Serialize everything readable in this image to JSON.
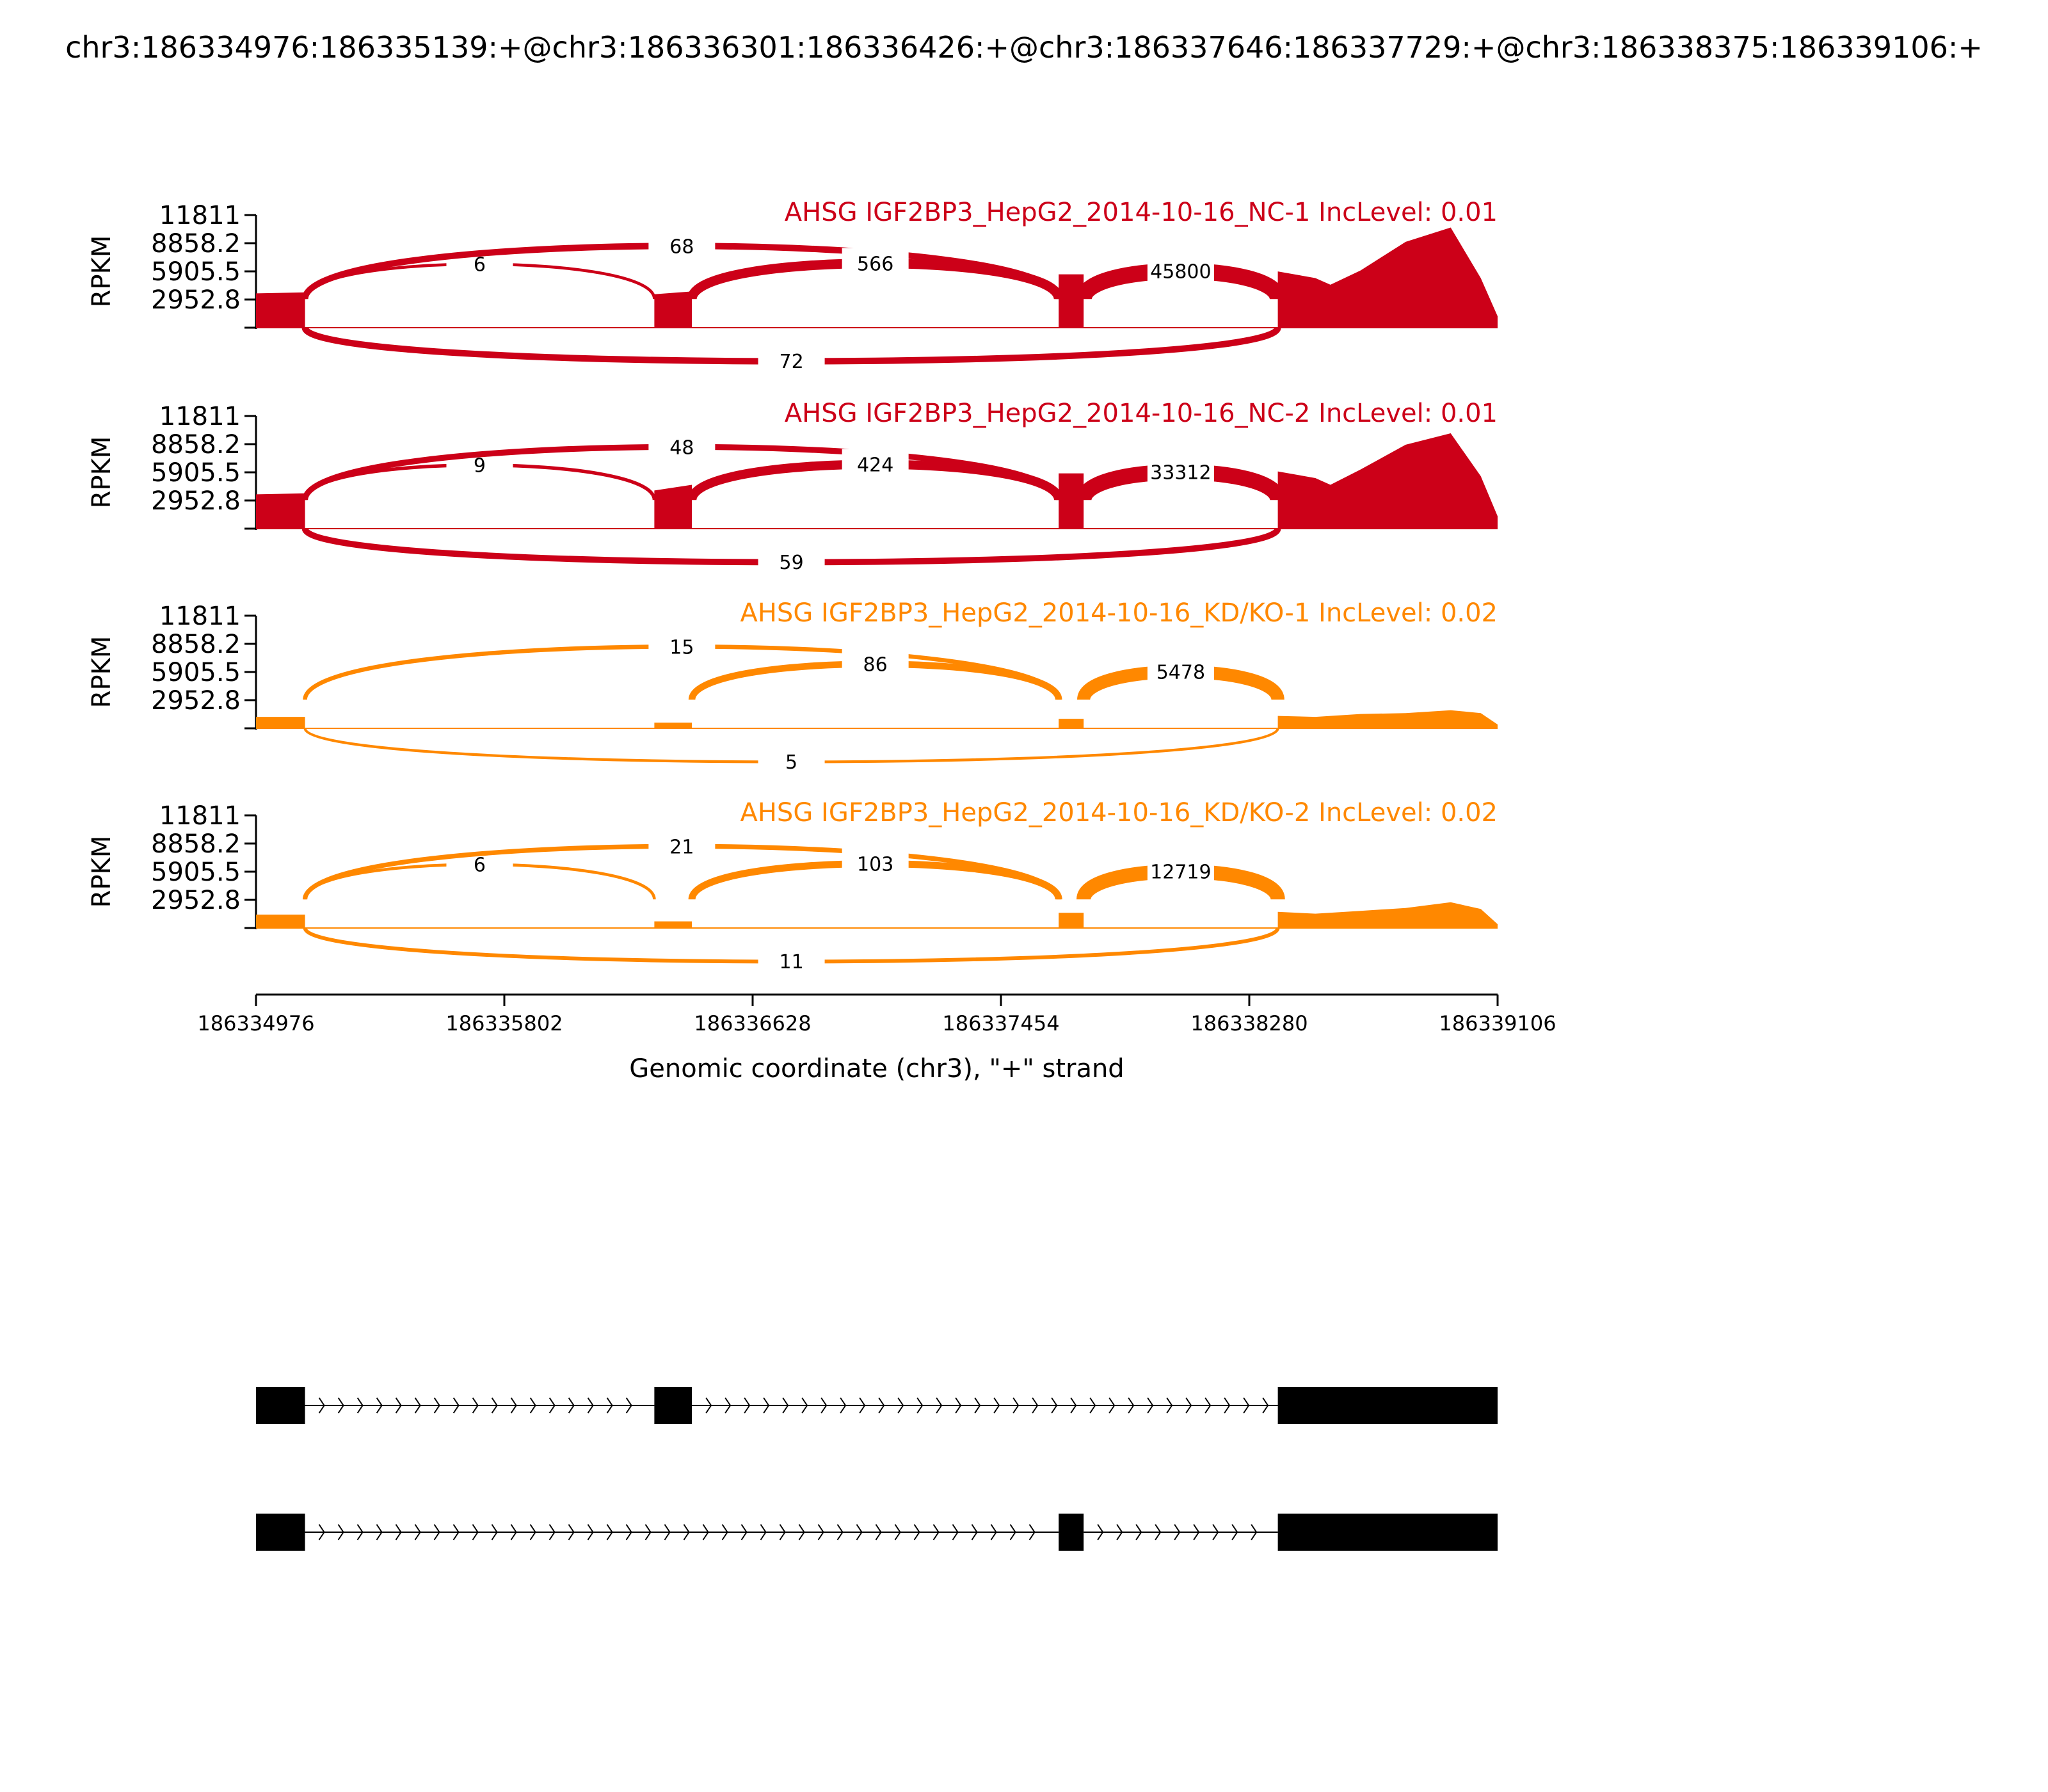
{
  "figure": {
    "title": "chr3:186334976:186335139:+@chr3:186336301:186336426:+@chr3:186337646:186337729:+@chr3:186338375:186339106:+",
    "xlabel": "Genomic coordinate (chr3), \"+\" strand",
    "colors": {
      "nc": "#cc0018",
      "kd": "#ff8800",
      "axis": "#000000",
      "bg": "#ffffff"
    }
  },
  "chart_data": {
    "type": "area",
    "xlim": [
      186334976,
      186339106
    ],
    "x_ticks": [
      "186334976",
      "186335802",
      "186336628",
      "186337454",
      "186338280",
      "186339106"
    ],
    "ylabel": "RPKM",
    "ylim": [
      0,
      11811
    ],
    "y_ticks": [
      "11811",
      "8858.2",
      "5905.5",
      "2952.8"
    ],
    "exons": [
      [
        186334976,
        186335139
      ],
      [
        186336301,
        186336426
      ],
      [
        186337646,
        186337729
      ],
      [
        186338375,
        186339106
      ]
    ],
    "panels": [
      {
        "label": "AHSG IGF2BP3_HepG2_2014-10-16_NC-1 IncLevel: 0.01",
        "group": "nc",
        "coverage": [
          {
            "x": [
              186334976,
              186335139
            ],
            "y": [
              3600,
              3700
            ]
          },
          {
            "x": [
              186336301,
              186336426
            ],
            "y": [
              3500,
              3800
            ]
          },
          {
            "x": [
              186337646,
              186337729
            ],
            "y": [
              5600,
              5600
            ]
          },
          {
            "x": [
              186338375,
              186338500,
              186338550,
              186338650,
              186338800,
              186338950,
              186339050,
              186339106
            ],
            "y": [
              5900,
              5200,
              4500,
              6000,
              9000,
              10500,
              5200,
              1200
            ]
          }
        ],
        "junctions": [
          {
            "from": 186335139,
            "to": 186336301,
            "count": "6",
            "above": true
          },
          {
            "from": 186335139,
            "to": 186337646,
            "count": "68",
            "above": true
          },
          {
            "from": 186336426,
            "to": 186337646,
            "count": "566",
            "above": true
          },
          {
            "from": 186337729,
            "to": 186338375,
            "count": "45800",
            "above": true
          },
          {
            "from": 186335139,
            "to": 186338375,
            "count": "72",
            "above": false
          }
        ]
      },
      {
        "label": "AHSG IGF2BP3_HepG2_2014-10-16_NC-2 IncLevel: 0.01",
        "group": "nc",
        "coverage": [
          {
            "x": [
              186334976,
              186335139
            ],
            "y": [
              3600,
              3700
            ]
          },
          {
            "x": [
              186336301,
              186336426
            ],
            "y": [
              4000,
              4600
            ]
          },
          {
            "x": [
              186337646,
              186337729
            ],
            "y": [
              5800,
              5800
            ]
          },
          {
            "x": [
              186338375,
              186338500,
              186338550,
              186338650,
              186338800,
              186338950,
              186339050,
              186339106
            ],
            "y": [
              6000,
              5300,
              4600,
              6200,
              8800,
              10000,
              5500,
              1300
            ]
          }
        ],
        "junctions": [
          {
            "from": 186335139,
            "to": 186336301,
            "count": "9",
            "above": true
          },
          {
            "from": 186335139,
            "to": 186337646,
            "count": "48",
            "above": true
          },
          {
            "from": 186336426,
            "to": 186337646,
            "count": "424",
            "above": true
          },
          {
            "from": 186337729,
            "to": 186338375,
            "count": "33312",
            "above": true
          },
          {
            "from": 186335139,
            "to": 186338375,
            "count": "59",
            "above": false
          }
        ]
      },
      {
        "label": "AHSG IGF2BP3_HepG2_2014-10-16_KD/KO-1 IncLevel: 0.02",
        "group": "kd",
        "coverage": [
          {
            "x": [
              186334976,
              186335139
            ],
            "y": [
              1200,
              1200
            ]
          },
          {
            "x": [
              186336301,
              186336426
            ],
            "y": [
              600,
              600
            ]
          },
          {
            "x": [
              186337646,
              186337729
            ],
            "y": [
              1000,
              1000
            ]
          },
          {
            "x": [
              186338375,
              186338500,
              186338650,
              186338800,
              186338950,
              186339050,
              186339106
            ],
            "y": [
              1300,
              1200,
              1500,
              1600,
              1900,
              1600,
              400
            ]
          }
        ],
        "junctions": [
          {
            "from": 186335139,
            "to": 186337646,
            "count": "15",
            "above": true
          },
          {
            "from": 186336426,
            "to": 186337646,
            "count": "86",
            "above": true
          },
          {
            "from": 186337729,
            "to": 186338375,
            "count": "5478",
            "above": true
          },
          {
            "from": 186335139,
            "to": 186338375,
            "count": "5",
            "above": false
          }
        ]
      },
      {
        "label": "AHSG IGF2BP3_HepG2_2014-10-16_KD/KO-2 IncLevel: 0.02",
        "group": "kd",
        "coverage": [
          {
            "x": [
              186334976,
              186335139
            ],
            "y": [
              1400,
              1400
            ]
          },
          {
            "x": [
              186336301,
              186336426
            ],
            "y": [
              700,
              700
            ]
          },
          {
            "x": [
              186337646,
              186337729
            ],
            "y": [
              1600,
              1600
            ]
          },
          {
            "x": [
              186338375,
              186338500,
              186338650,
              186338800,
              186338950,
              186339050,
              186339106
            ],
            "y": [
              1700,
              1500,
              1800,
              2100,
              2700,
              2000,
              400
            ]
          }
        ],
        "junctions": [
          {
            "from": 186335139,
            "to": 186336301,
            "count": "6",
            "above": true
          },
          {
            "from": 186335139,
            "to": 186337646,
            "count": "21",
            "above": true
          },
          {
            "from": 186336426,
            "to": 186337646,
            "count": "103",
            "above": true
          },
          {
            "from": 186337729,
            "to": 186338375,
            "count": "12719",
            "above": true
          },
          {
            "from": 186335139,
            "to": 186338375,
            "count": "11",
            "above": false
          }
        ]
      }
    ],
    "isoforms": [
      {
        "exons": [
          [
            186334976,
            186335139
          ],
          [
            186336301,
            186336426
          ],
          [
            186338375,
            186339106
          ]
        ]
      },
      {
        "exons": [
          [
            186334976,
            186335139
          ],
          [
            186337646,
            186337729
          ],
          [
            186338375,
            186339106
          ]
        ]
      }
    ]
  }
}
